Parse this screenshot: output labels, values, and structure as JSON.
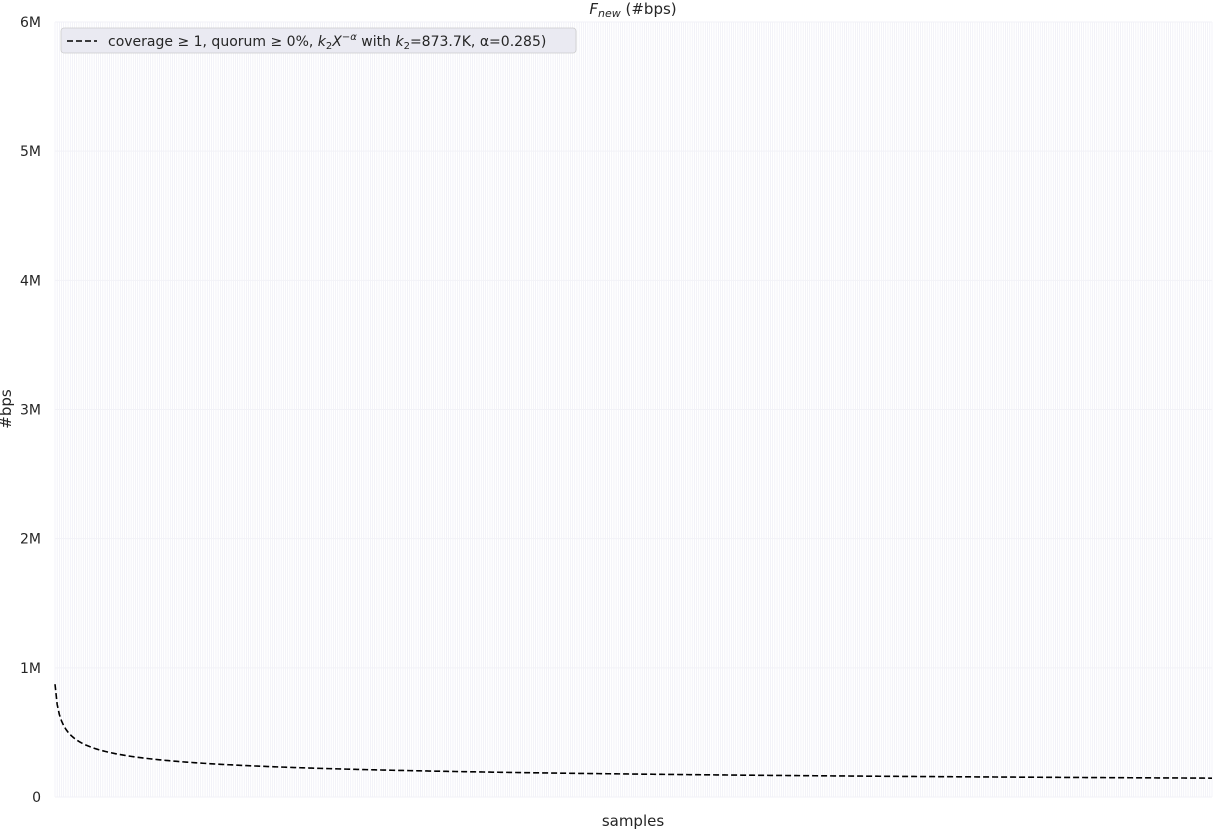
{
  "chart_data": {
    "type": "line",
    "title": {
      "main": "F",
      "sub": "new",
      "rest": " (#bps)"
    },
    "xlabel": "samples",
    "ylabel": "#bps",
    "ylim": [
      0,
      6000000
    ],
    "x_count": 533,
    "y_ticks": [
      {
        "value": 0,
        "label": "0"
      },
      {
        "value": 1000000,
        "label": "1M"
      },
      {
        "value": 2000000,
        "label": "2M"
      },
      {
        "value": 3000000,
        "label": "3M"
      },
      {
        "value": 4000000,
        "label": "4M"
      },
      {
        "value": 5000000,
        "label": "5M"
      },
      {
        "value": 6000000,
        "label": "6M"
      }
    ],
    "grid": true,
    "legend_position": "top-left",
    "series": [
      {
        "name": "coverage ≥1, quorum ≥0%, k₂X⁻ᵅ with k₂=873.7K, α=0.285)",
        "style": "dashed",
        "color": "#000000",
        "model": {
          "form": "power",
          "k2": 873700,
          "alpha": 0.285
        }
      }
    ],
    "legend": {
      "pre": "coverage  ≥ 1, quorum  ≥ 0%, ",
      "k": "k",
      "k_sub": "2",
      "X": "X",
      "exp": "−α",
      "mid": " with ",
      "k2": "k",
      "k2_sub": "2",
      "post": "=873.7K, α=0.285)"
    },
    "colors": {
      "background": "#ffffff",
      "grid": "#e6e6f0",
      "line": "#000000",
      "vline": "#ebebf4"
    }
  }
}
